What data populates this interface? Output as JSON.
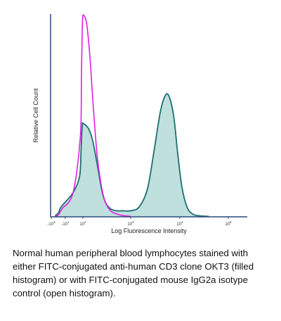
{
  "chart_data": {
    "type": "area",
    "title": "",
    "xlabel": "Log Fluorescence Intensity",
    "ylabel": "Relative Cell Count",
    "x_scale": "log-biexponential",
    "xlim": [
      -1000,
      100000
    ],
    "ylim": [
      0,
      100
    ],
    "grid": false,
    "legend": "none",
    "x_ticks": [
      {
        "value": -1000,
        "label": "-10",
        "exp": "3"
      },
      {
        "value": -10,
        "label": "-10",
        "exp": "1"
      },
      {
        "value": 100,
        "label": "10",
        "exp": "2"
      },
      {
        "value": 1000,
        "label": "10",
        "exp": "3"
      },
      {
        "value": 10000,
        "label": "10",
        "exp": "4"
      },
      {
        "value": 100000,
        "label": "10",
        "exp": "5"
      }
    ],
    "series": [
      {
        "style": "filled",
        "fill_color": "#bfe0dd",
        "line_color": "#1e6e70",
        "points": [
          [
            -300,
            0.5
          ],
          [
            -100,
            2
          ],
          [
            -40,
            5
          ],
          [
            0,
            12
          ],
          [
            20,
            20
          ],
          [
            40,
            32
          ],
          [
            60,
            42
          ],
          [
            80,
            46
          ],
          [
            100,
            46.5
          ],
          [
            130,
            44
          ],
          [
            160,
            38
          ],
          [
            200,
            26
          ],
          [
            250,
            13
          ],
          [
            300,
            7
          ],
          [
            380,
            4
          ],
          [
            500,
            3
          ],
          [
            700,
            3
          ],
          [
            1000,
            3
          ],
          [
            1500,
            5
          ],
          [
            2200,
            14
          ],
          [
            3000,
            33
          ],
          [
            4000,
            52
          ],
          [
            5000,
            60
          ],
          [
            6000,
            60
          ],
          [
            7500,
            50
          ],
          [
            9000,
            32
          ],
          [
            11000,
            15
          ],
          [
            14000,
            5
          ],
          [
            18000,
            1.5
          ],
          [
            25000,
            0.5
          ],
          [
            40000,
            0.2
          ]
        ]
      },
      {
        "style": "open",
        "line_color": "#e020e0",
        "points": [
          [
            -300,
            0.2
          ],
          [
            -100,
            1
          ],
          [
            -30,
            4
          ],
          [
            0,
            12
          ],
          [
            30,
            40
          ],
          [
            50,
            70
          ],
          [
            70,
            90
          ],
          [
            90,
            99
          ],
          [
            105,
            100
          ],
          [
            120,
            96
          ],
          [
            140,
            80
          ],
          [
            165,
            55
          ],
          [
            200,
            30
          ],
          [
            250,
            14
          ],
          [
            300,
            7
          ],
          [
            380,
            3
          ],
          [
            500,
            1.5
          ],
          [
            700,
            0.6
          ],
          [
            1000,
            0.3
          ]
        ]
      }
    ]
  },
  "caption": "Normal human peripheral blood lymphocytes stained with either FITC-conjugated anti-human CD3 clone OKT3 (filled histogram) or with FITC-conjugated mouse IgG2a isotype control (open histogram)."
}
